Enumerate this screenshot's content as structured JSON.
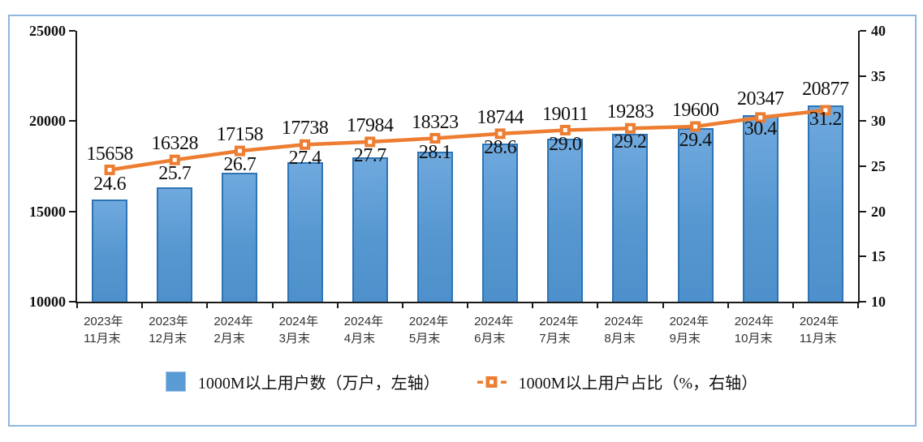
{
  "chart_data": {
    "type": "bar",
    "title": "",
    "categories": [
      "2023年\n11月末",
      "2023年\n12月末",
      "2024年\n2月末",
      "2024年\n3月末",
      "2024年\n4月末",
      "2024年\n5月末",
      "2024年\n6月末",
      "2024年\n7月末",
      "2024年\n8月末",
      "2024年\n9月末",
      "2024年\n10月末",
      "2024年\n11月末"
    ],
    "series": [
      {
        "name": "1000M以上用户数（万户，左轴）",
        "type": "bar",
        "axis": "left",
        "values": [
          15658,
          16328,
          17158,
          17738,
          17984,
          18323,
          18744,
          19011,
          19283,
          19600,
          20347,
          20877
        ],
        "color": "#5B9BD5",
        "border_color": "#2E74B5"
      },
      {
        "name": "1000M以上用户占比（%，右轴）",
        "type": "line",
        "axis": "right",
        "values": [
          24.6,
          25.7,
          26.7,
          27.4,
          27.7,
          28.1,
          28.6,
          29.0,
          29.2,
          29.4,
          30.4,
          31.2
        ],
        "color": "#ED7D31"
      }
    ],
    "left_axis": {
      "min": 10000,
      "max": 25000,
      "ticks": [
        10000,
        15000,
        20000,
        25000
      ]
    },
    "right_axis": {
      "min": 10,
      "max": 40,
      "ticks": [
        10,
        15,
        20,
        25,
        30,
        35,
        40
      ]
    },
    "legend_position": "bottom",
    "grid": false,
    "data_labels": true,
    "colors": {
      "bar_fill": "#5B9BD5",
      "bar_border": "#2E74B5",
      "line": "#ED7D31",
      "axis": "#1a1a1a",
      "chart_border": "#8FB8DC",
      "category_label": "#333333"
    }
  }
}
